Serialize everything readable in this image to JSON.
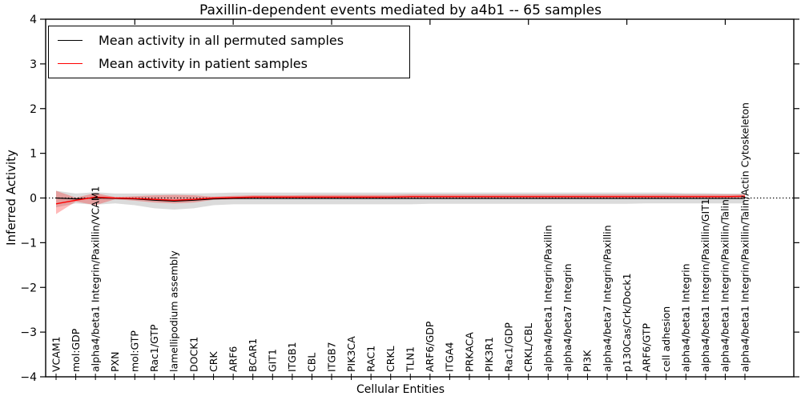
{
  "title": "Paxillin-dependent events mediated by a4b1 -- 65 samples",
  "legend": {
    "items": [
      {
        "label": "Mean activity in all permuted samples",
        "color": "#000000"
      },
      {
        "label": "Mean activity in patient samples",
        "color": "#ff0000"
      }
    ]
  },
  "chart_data": {
    "type": "line",
    "title": "Paxillin-dependent events mediated by a4b1 -- 65 samples",
    "xlabel": "Cellular Entities",
    "ylabel": "Inferred Activity",
    "ylim": [
      -4,
      4
    ],
    "yticks": [
      4,
      3,
      2,
      1,
      0,
      -1,
      -2,
      -3,
      -4
    ],
    "grid": false,
    "legend_position": "upper left",
    "categories": [
      "VCAM1",
      "mol:GDP",
      "alpha4/beta1 Integrin/Paxillin/VCAM1",
      "PXN",
      "mol:GTP",
      "Rac1/GTP",
      "lamellipodium assembly",
      "DOCK1",
      "CRK",
      "ARF6",
      "BCAR1",
      "GIT1",
      "ITGB1",
      "CBL",
      "ITGB7",
      "PIK3CA",
      "RAC1",
      "CRKL",
      "TLN1",
      "ARF6/GDP",
      "ITGA4",
      "PRKACA",
      "PIK3R1",
      "Rac1/GDP",
      "CRKL/CBL",
      "alpha4/beta1 Integrin/Paxillin",
      "alpha4/beta7 Integrin",
      "PI3K",
      "alpha4/beta7 Integrin/Paxillin",
      "p130Cas/Crk/Dock1",
      "ARF6/GTP",
      "cell adhesion",
      "alpha4/beta1 Integrin",
      "alpha4/beta1 Integrin/Paxillin/GIT1",
      "alpha4/beta1 Integrin/Paxillin/Talin",
      "alpha4/beta1 Integrin/Paxillin/Talin/Actin Cytoskeleton"
    ],
    "series": [
      {
        "name": "Mean activity in all permuted samples",
        "color": "#000000",
        "values": [
          0.0,
          -0.02,
          0.0,
          -0.01,
          -0.02,
          -0.05,
          -0.07,
          -0.05,
          -0.02,
          -0.01,
          -0.01,
          -0.01,
          -0.01,
          -0.01,
          -0.01,
          -0.01,
          -0.01,
          -0.01,
          -0.01,
          -0.01,
          -0.01,
          -0.01,
          -0.01,
          -0.01,
          -0.01,
          -0.01,
          -0.01,
          -0.01,
          -0.01,
          -0.01,
          -0.01,
          -0.01,
          -0.01,
          -0.01,
          -0.01,
          -0.01
        ]
      },
      {
        "name": "Mean activity in patient samples",
        "color": "#ff0000",
        "values": [
          -0.13,
          -0.05,
          0.02,
          0.0,
          -0.01,
          -0.03,
          -0.05,
          -0.03,
          0.0,
          0.01,
          0.02,
          0.02,
          0.02,
          0.02,
          0.02,
          0.02,
          0.02,
          0.02,
          0.03,
          0.03,
          0.03,
          0.03,
          0.03,
          0.03,
          0.03,
          0.03,
          0.03,
          0.03,
          0.03,
          0.03,
          0.03,
          0.03,
          0.03,
          0.03,
          0.03,
          0.04
        ]
      }
    ],
    "bands": [
      {
        "name": "permuted-samples-std-band",
        "color": "rgba(0,0,0,0.14)",
        "upper": [
          0.16,
          0.1,
          0.13,
          0.1,
          0.1,
          0.1,
          0.1,
          0.1,
          0.11,
          0.12,
          0.12,
          0.12,
          0.12,
          0.12,
          0.12,
          0.12,
          0.12,
          0.12,
          0.12,
          0.12,
          0.12,
          0.12,
          0.12,
          0.12,
          0.12,
          0.12,
          0.12,
          0.12,
          0.12,
          0.12,
          0.12,
          0.12,
          0.11,
          0.11,
          0.1,
          0.1
        ],
        "lower": [
          -0.21,
          -0.12,
          -0.15,
          -0.12,
          -0.16,
          -0.23,
          -0.26,
          -0.23,
          -0.16,
          -0.14,
          -0.14,
          -0.14,
          -0.14,
          -0.14,
          -0.14,
          -0.14,
          -0.14,
          -0.14,
          -0.14,
          -0.13,
          -0.13,
          -0.13,
          -0.13,
          -0.13,
          -0.13,
          -0.13,
          -0.13,
          -0.13,
          -0.13,
          -0.13,
          -0.12,
          -0.12,
          -0.12,
          -0.12,
          -0.12,
          -0.12
        ]
      },
      {
        "name": "patient-samples-std-band",
        "color": "rgba(255,0,0,0.27)",
        "upper": [
          0.16,
          0.01,
          0.11,
          0.02,
          0.04,
          0.06,
          0.07,
          0.06,
          0.03,
          0.05,
          0.06,
          0.06,
          0.06,
          0.07,
          0.07,
          0.07,
          0.07,
          0.07,
          0.08,
          0.08,
          0.08,
          0.08,
          0.08,
          0.08,
          0.08,
          0.08,
          0.08,
          0.08,
          0.08,
          0.08,
          0.08,
          0.08,
          0.08,
          0.08,
          0.08,
          0.08
        ],
        "lower": [
          -0.36,
          -0.08,
          -0.16,
          -0.03,
          -0.06,
          -0.1,
          -0.12,
          -0.1,
          -0.04,
          -0.03,
          -0.02,
          -0.02,
          -0.02,
          -0.02,
          -0.02,
          -0.02,
          -0.02,
          -0.02,
          -0.02,
          -0.02,
          -0.02,
          -0.02,
          -0.02,
          -0.02,
          -0.02,
          -0.02,
          -0.02,
          -0.02,
          -0.02,
          -0.02,
          -0.02,
          -0.02,
          -0.01,
          -0.01,
          -0.01,
          -0.01
        ]
      }
    ],
    "zero_line": {
      "style": "dotted",
      "color": "#000000",
      "y": 0
    }
  }
}
